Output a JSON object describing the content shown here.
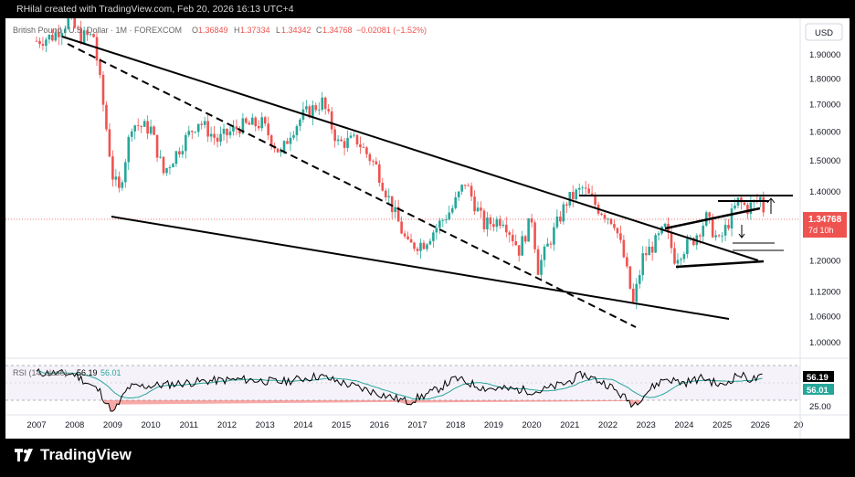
{
  "header": {
    "credit": "RHilal created with TradingView.com, Feb 20, 2026 16:13 UTC+4",
    "symbol": "British Pound / U.S. Dollar · 1M · FOREXCOM",
    "ohlc": {
      "o_label": "O",
      "o": "1.36849",
      "h_label": "H",
      "h": "1.37334",
      "l_label": "L",
      "l": "1.34342",
      "c_label": "C",
      "c": "1.34768",
      "change": "−0.02081 (−1.52%)"
    },
    "currency_button": "USD"
  },
  "price_axis": {
    "ticks": [
      "1.90000",
      "1.80000",
      "1.70000",
      "1.60000",
      "1.50000",
      "1.40000",
      "1.20000",
      "1.12000",
      "1.06000",
      "1.00000"
    ],
    "current_price": "1.34768",
    "countdown": "7d 10h"
  },
  "rsi": {
    "label": "RSI (14, close)",
    "value": "56.19",
    "ma_value": "56.01",
    "tick_25": "25.00",
    "colors": {
      "rsi": "#000000",
      "ma": "#26a69a",
      "band": "#7e57c2"
    }
  },
  "time_axis": [
    "2007",
    "2008",
    "2009",
    "2010",
    "2011",
    "2012",
    "2013",
    "2014",
    "2015",
    "2016",
    "2017",
    "2018",
    "2019",
    "2020",
    "2021",
    "2022",
    "2023",
    "2024",
    "2025",
    "2026",
    "20"
  ],
  "brand": {
    "name": "TradingView"
  },
  "colors": {
    "up": "#26a69a",
    "down": "#ef5350",
    "price_line": "#ef5350",
    "background": "#ffffff"
  },
  "chart_data": {
    "type": "line",
    "title": "British Pound / U.S. Dollar · 1M · FOREXCOM",
    "xlabel": "",
    "ylabel": "",
    "log_scale": true,
    "ylim": [
      0.97,
      2.15
    ],
    "series": [
      {
        "name": "",
        "x": [
          "2007-01",
          "2007-06",
          "2007-11",
          "2008-03",
          "2008-07",
          "2008-10",
          "2009-01",
          "2009-03",
          "2009-07",
          "2010-01",
          "2010-05",
          "2010-11",
          "2011-04",
          "2011-10",
          "2012-05",
          "2012-12",
          "2013-06",
          "2013-09",
          "2014-01",
          "2014-07",
          "2014-12",
          "2015-06",
          "2015-12",
          "2016-06",
          "2016-10",
          "2017-03",
          "2017-12",
          "2018-04",
          "2018-10",
          "2019-04",
          "2019-09",
          "2020-01",
          "2020-03",
          "2020-06",
          "2020-12",
          "2021-05",
          "2021-10",
          "2022-03",
          "2022-06",
          "2022-09",
          "2022-12",
          "2023-04",
          "2023-07",
          "2023-10",
          "2024-04",
          "2024-08",
          "2024-12",
          "2025-06",
          "2025-09",
          "2026-01",
          "2026-02"
        ],
        "values": [
          1.96,
          1.98,
          2.05,
          1.98,
          1.98,
          1.7,
          1.45,
          1.4,
          1.63,
          1.61,
          1.46,
          1.56,
          1.64,
          1.57,
          1.62,
          1.63,
          1.52,
          1.6,
          1.66,
          1.71,
          1.56,
          1.57,
          1.48,
          1.33,
          1.24,
          1.25,
          1.35,
          1.43,
          1.3,
          1.32,
          1.23,
          1.32,
          1.18,
          1.24,
          1.37,
          1.41,
          1.35,
          1.31,
          1.21,
          1.09,
          1.21,
          1.25,
          1.29,
          1.21,
          1.26,
          1.32,
          1.25,
          1.37,
          1.35,
          1.38,
          1.347
        ]
      }
    ],
    "rsi_series": {
      "name": "RSI (14, close)",
      "x": [
        "2007-01",
        "2008-01",
        "2008-09",
        "2009-01",
        "2009-06",
        "2010-06",
        "2011-06",
        "2012-06",
        "2013-06",
        "2014-06",
        "2015-06",
        "2016-10",
        "2017-06",
        "2018-01",
        "2018-10",
        "2019-10",
        "2020-03",
        "2020-12",
        "2021-05",
        "2022-01",
        "2022-09",
        "2023-03",
        "2023-07",
        "2024-01",
        "2024-07",
        "2025-01",
        "2025-06",
        "2025-10",
        "2026-02"
      ],
      "values": [
        62,
        60,
        40,
        14,
        45,
        48,
        52,
        54,
        51,
        58,
        45,
        28,
        40,
        55,
        44,
        42,
        40,
        50,
        60,
        48,
        25,
        45,
        55,
        50,
        56,
        46,
        60,
        54,
        56.19
      ]
    },
    "annotations": [
      {
        "type": "descending channel",
        "from": "2008",
        "to": "2025",
        "description": "solid upper trendline, solid lower trendline"
      },
      {
        "type": "dashed trendline",
        "from": "2008",
        "to": "2022"
      },
      {
        "type": "horizontal level",
        "value": 1.42,
        "from": "2021",
        "to": "2026"
      },
      {
        "type": "converging triangle",
        "from": "2023",
        "to": "2026"
      }
    ]
  }
}
